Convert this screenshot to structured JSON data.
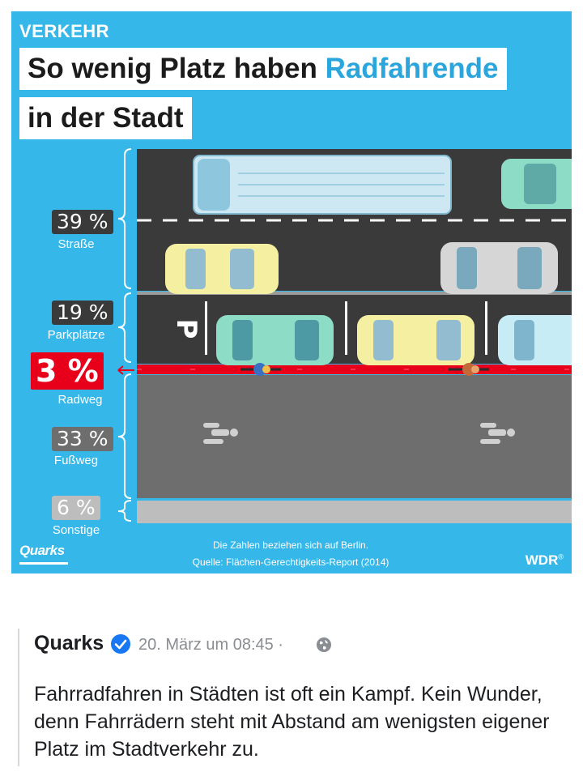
{
  "infographic": {
    "kicker": "VERKEHR",
    "title_line1_a": "So wenig Platz haben ",
    "title_line1_b": "Radfahrende",
    "title_line2": "in der Stadt",
    "segments": [
      {
        "percent": "39 %",
        "label": "Straße",
        "value": 39,
        "color": "#3a3a3a"
      },
      {
        "percent": "19 %",
        "label": "Parkplätze",
        "value": 19,
        "color": "#3a3a3a"
      },
      {
        "percent": "3 %",
        "label": "Radweg",
        "value": 3,
        "color": "#e8001b"
      },
      {
        "percent": "33 %",
        "label": "Fußweg",
        "value": 33,
        "color": "#6e6e6e"
      },
      {
        "percent": "6 %",
        "label": "Sonstige",
        "value": 6,
        "color": "#bdbdbd"
      }
    ],
    "parking_sign": "P",
    "footer_line1": "Die Zahlen beziehen sich auf Berlin.",
    "footer_line2": "Quelle: Flächen-Gerechtigkeits-Report (2014)",
    "logo_left": "Quarks",
    "logo_right": "WDR",
    "logo_right_mark": "®"
  },
  "post": {
    "author": "Quarks",
    "meta": "20. März um 08:45 ·",
    "text": "Fahrradfahren in Städten ist oft ein Kampf. Kein Wunder, denn Fahrrädern steht mit Abstand am wenigsten eigener Platz im Stadtverkehr zu."
  },
  "icons": {
    "verified": "verified-check-icon",
    "audience": "globe-icon"
  }
}
